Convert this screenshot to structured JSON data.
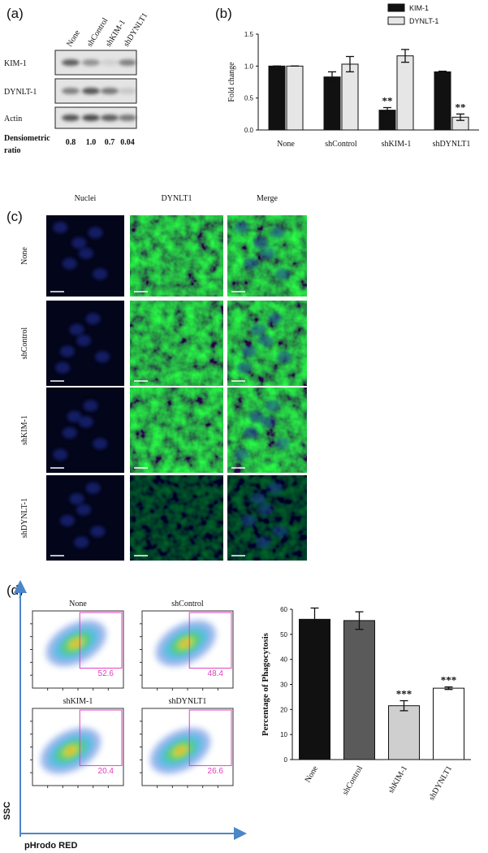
{
  "panel_a": {
    "label": "(a)",
    "columns": [
      "None",
      "shControl",
      "shKIM-1",
      "shDYNLT1"
    ],
    "rows": [
      "KIM-1",
      "DYNLT-1",
      "Actin"
    ],
    "ratio_label": [
      "Densiometric",
      "ratio"
    ],
    "ratios": [
      "0.8",
      "1.0",
      "0.7",
      "0.04"
    ]
  },
  "chart_data": [
    {
      "type": "bar",
      "panel_label": "(b)",
      "ylabel": "Fold change",
      "categories": [
        "None",
        "shControl",
        "shKIM-1",
        "shDYNLT1"
      ],
      "series": [
        {
          "name": "KIM-1",
          "color": "#111111",
          "values": [
            1.0,
            0.83,
            0.31,
            0.91
          ],
          "errors": [
            0.0,
            0.08,
            0.04,
            0.01
          ],
          "value_annotations": [
            null,
            null,
            "**",
            null
          ]
        },
        {
          "name": "DYNLT-1",
          "color": "#e6e6e6",
          "values": [
            1.0,
            1.03,
            1.16,
            0.2
          ],
          "errors": [
            0.0,
            0.12,
            0.1,
            0.05
          ],
          "value_annotations": [
            null,
            null,
            null,
            "**"
          ]
        }
      ],
      "ylim": [
        0,
        1.5
      ],
      "yticks": [
        {
          "value": 0,
          "label": "0.0"
        },
        {
          "value": 0.5,
          "label": "0.5"
        },
        {
          "value": 1,
          "label": "1.0"
        },
        {
          "value": 1.5,
          "label": "1.5"
        }
      ],
      "legend": "top-right"
    },
    {
      "type": "bar",
      "ylabel": "Percentage of Phagocytosis",
      "categories": [
        "None",
        "shControl",
        "shKIM-1",
        "shDYNLT1"
      ],
      "values": [
        56,
        55.5,
        21.5,
        28.5
      ],
      "errors": [
        4.5,
        3.5,
        2,
        0.5
      ],
      "colors": [
        "#111111",
        "#5a5a5a",
        "#cfcfcf",
        "#ffffff"
      ],
      "value_annotations": [
        null,
        null,
        "***",
        "***"
      ],
      "ylim": [
        0,
        60
      ],
      "yticks": [
        0,
        10,
        20,
        30,
        40,
        50,
        60
      ]
    }
  ],
  "panel_c": {
    "label": "(c)",
    "columns": [
      "Nuclei",
      "DYNLT1",
      "Merge"
    ],
    "rows": [
      "None",
      "shControl",
      "shKIM-1",
      "shDYNLT-1"
    ]
  },
  "panel_d": {
    "label": "(d)",
    "plots": [
      {
        "title": "None",
        "gate": 52.6
      },
      {
        "title": "shControl",
        "gate": 48.4
      },
      {
        "title": "shKIM-1",
        "gate": 20.4
      },
      {
        "title": "shDYNLT1",
        "gate": 26.6
      }
    ],
    "y_axis_label": "SSC",
    "x_axis_label": "pHrodo RED"
  }
}
